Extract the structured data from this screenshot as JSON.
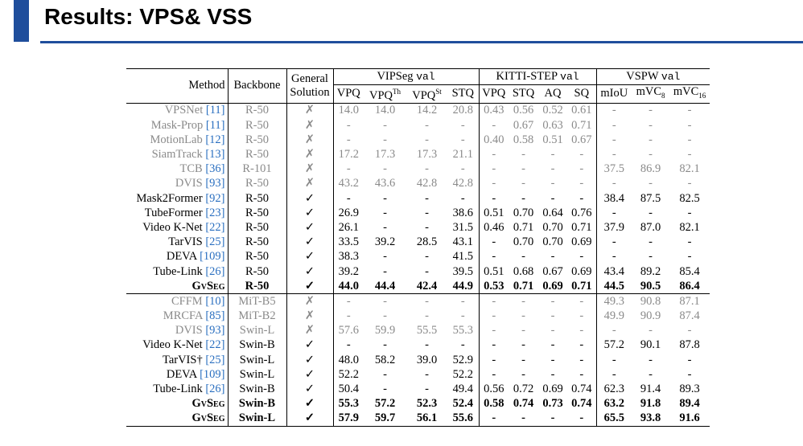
{
  "header": {
    "title": "Results: VPS& VSS"
  },
  "table": {
    "columns": {
      "method": "Method",
      "backbone": "Backbone",
      "general": [
        "General",
        "Solution"
      ]
    },
    "groups": [
      {
        "name": "VIPSeg",
        "split": "val",
        "subs": [
          {
            "text": "VPQ"
          },
          {
            "text": "VPQ",
            "sup": "Th"
          },
          {
            "text": "VPQ",
            "sup": "St"
          },
          {
            "text": "STQ"
          }
        ]
      },
      {
        "name": "KITTI-STEP",
        "split": "val",
        "subs": [
          {
            "text": "VPQ"
          },
          {
            "text": "STQ"
          },
          {
            "text": "AQ"
          },
          {
            "text": "SQ"
          }
        ]
      },
      {
        "name": "VSPW",
        "split": "val",
        "subs": [
          {
            "text": "mIoU"
          },
          {
            "text": "mVC",
            "sub": "8"
          },
          {
            "text": "mVC",
            "sub": "16"
          }
        ]
      }
    ],
    "sections": [
      {
        "rows": [
          {
            "method": "VPSNet",
            "ref": "[11]",
            "backbone": "R-50",
            "general": "✗",
            "color": "#8a8a8a",
            "cells": [
              "14.0",
              "14.0",
              "14.2",
              "20.8",
              "0.43",
              "0.56",
              "0.52",
              "0.61",
              "-",
              "-",
              "-"
            ]
          },
          {
            "method": "Mask-Prop",
            "ref": "[11]",
            "backbone": "R-50",
            "general": "✗",
            "color": "#8a8a8a",
            "cells": [
              "-",
              "-",
              "-",
              "-",
              "-",
              "0.67",
              "0.63",
              "0.71",
              "-",
              "-",
              "-"
            ]
          },
          {
            "method": "MotionLab",
            "ref": "[12]",
            "backbone": "R-50",
            "general": "✗",
            "color": "#8a8a8a",
            "cells": [
              "-",
              "-",
              "-",
              "-",
              "0.40",
              "0.58",
              "0.51",
              "0.67",
              "-",
              "-",
              "-"
            ]
          },
          {
            "method": "SiamTrack",
            "ref": "[13]",
            "backbone": "R-50",
            "general": "✗",
            "color": "#8a8a8a",
            "cells": [
              "17.2",
              "17.3",
              "17.3",
              "21.1",
              "-",
              "-",
              "-",
              "-",
              "-",
              "-",
              "-"
            ]
          },
          {
            "method": "TCB",
            "ref": "[36]",
            "backbone": "R-101",
            "general": "✗",
            "color": "#8a8a8a",
            "cells": [
              "-",
              "-",
              "-",
              "-",
              "-",
              "-",
              "-",
              "-",
              "37.5",
              "86.9",
              "82.1"
            ]
          },
          {
            "method": "DVIS",
            "ref": "[93]",
            "backbone": "R-50",
            "general": "✗",
            "color": "#8a8a8a",
            "cells": [
              "43.2",
              "43.6",
              "42.8",
              "42.8",
              "-",
              "-",
              "-",
              "-",
              "-",
              "-",
              "-"
            ]
          },
          {
            "method": "Mask2Former",
            "ref": "[92]",
            "backbone": "R-50",
            "general": "✓",
            "color": "#000000",
            "cells": [
              "-",
              "-",
              "-",
              "-",
              "-",
              "-",
              "-",
              "-",
              "38.4",
              "87.5",
              "82.5"
            ]
          },
          {
            "method": "TubeFormer",
            "ref": "[23]",
            "backbone": "R-50",
            "general": "✓",
            "color": "#000000",
            "cells": [
              "26.9",
              "-",
              "-",
              "38.6",
              "0.51",
              "0.70",
              "0.64",
              "0.76",
              "-",
              "-",
              "-"
            ]
          },
          {
            "method": "Video K-Net",
            "ref": "[22]",
            "backbone": "R-50",
            "general": "✓",
            "color": "#000000",
            "cells": [
              "26.1",
              "-",
              "-",
              "31.5",
              "0.46",
              "0.71",
              "0.70",
              "0.71",
              "37.9",
              "87.0",
              "82.1"
            ]
          },
          {
            "method": "TarVIS",
            "ref": "[25]",
            "backbone": "R-50",
            "general": "✓",
            "color": "#000000",
            "cells": [
              "33.5",
              "39.2",
              "28.5",
              "43.1",
              "-",
              "0.70",
              "0.70",
              "0.69",
              "-",
              "-",
              "-"
            ]
          },
          {
            "method": "DEVA",
            "ref": "[109]",
            "backbone": "R-50",
            "general": "✓",
            "color": "#000000",
            "cells": [
              "38.3",
              "-",
              "-",
              "41.5",
              "-",
              "-",
              "-",
              "-",
              "-",
              "-",
              "-"
            ]
          },
          {
            "method": "Tube-Link",
            "ref": "[26]",
            "backbone": "R-50",
            "general": "✓",
            "color": "#000000",
            "cells": [
              "39.2",
              "-",
              "-",
              "39.5",
              "0.51",
              "0.68",
              "0.67",
              "0.69",
              "43.4",
              "89.2",
              "85.4"
            ]
          },
          {
            "method": "GvSeg",
            "backbone": "R-50",
            "general": "✓",
            "color": "#000000",
            "bold": true,
            "cells": [
              "44.0",
              "44.4",
              "42.4",
              "44.9",
              "0.53",
              "0.71",
              "0.69",
              "0.71",
              "44.5",
              "90.5",
              "86.4"
            ]
          }
        ]
      },
      {
        "rows": [
          {
            "method": "CFFM",
            "ref": "[10]",
            "backbone": "MiT-B5",
            "general": "✗",
            "color": "#8a8a8a",
            "cells": [
              "-",
              "-",
              "-",
              "-",
              "-",
              "-",
              "-",
              "-",
              "49.3",
              "90.8",
              "87.1"
            ]
          },
          {
            "method": "MRCFA",
            "ref": "[85]",
            "backbone": "MiT-B2",
            "general": "✗",
            "color": "#8a8a8a",
            "cells": [
              "-",
              "-",
              "-",
              "-",
              "-",
              "-",
              "-",
              "-",
              "49.9",
              "90.9",
              "87.4"
            ]
          },
          {
            "method": "DVIS",
            "ref": "[93]",
            "backbone": "Swin-L",
            "general": "✗",
            "color": "#8a8a8a",
            "cells": [
              "57.6",
              "59.9",
              "55.5",
              "55.3",
              "-",
              "-",
              "-",
              "-",
              "-",
              "-",
              "-"
            ]
          },
          {
            "method": "Video K-Net",
            "ref": "[22]",
            "backbone": "Swin-B",
            "general": "✓",
            "color": "#000000",
            "cells": [
              "-",
              "-",
              "-",
              "-",
              "-",
              "-",
              "-",
              "-",
              "57.2",
              "90.1",
              "87.8"
            ]
          },
          {
            "method": "TarVIS†",
            "ref": "[25]",
            "backbone": "Swin-L",
            "general": "✓",
            "color": "#000000",
            "cells": [
              "48.0",
              "58.2",
              "39.0",
              "52.9",
              "-",
              "-",
              "-",
              "-",
              "-",
              "-",
              "-"
            ]
          },
          {
            "method": "DEVA",
            "ref": "[109]",
            "backbone": "Swin-L",
            "general": "✓",
            "color": "#000000",
            "cells": [
              "52.2",
              "-",
              "-",
              "52.2",
              "-",
              "-",
              "-",
              "-",
              "-",
              "-",
              "-"
            ]
          },
          {
            "method": "Tube-Link",
            "ref": "[26]",
            "backbone": "Swin-B",
            "general": "✓",
            "color": "#000000",
            "cells": [
              "50.4",
              "-",
              "-",
              "49.4",
              "0.56",
              "0.72",
              "0.69",
              "0.74",
              "62.3",
              "91.4",
              "89.3"
            ]
          },
          {
            "method": "GvSeg",
            "backbone": "Swin-B",
            "general": "✓",
            "color": "#000000",
            "bold": true,
            "cells": [
              "55.3",
              "57.2",
              "52.3",
              "52.4",
              "0.58",
              "0.74",
              "0.73",
              "0.74",
              "63.2",
              "91.8",
              "89.4"
            ]
          },
          {
            "method": "GvSeg",
            "backbone": "Swin-L",
            "general": "✓",
            "color": "#000000",
            "bold": true,
            "cells": [
              "57.9",
              "59.7",
              "56.1",
              "55.6",
              "-",
              "-",
              "-",
              "-",
              "65.5",
              "93.8",
              "91.6"
            ]
          }
        ]
      }
    ]
  }
}
